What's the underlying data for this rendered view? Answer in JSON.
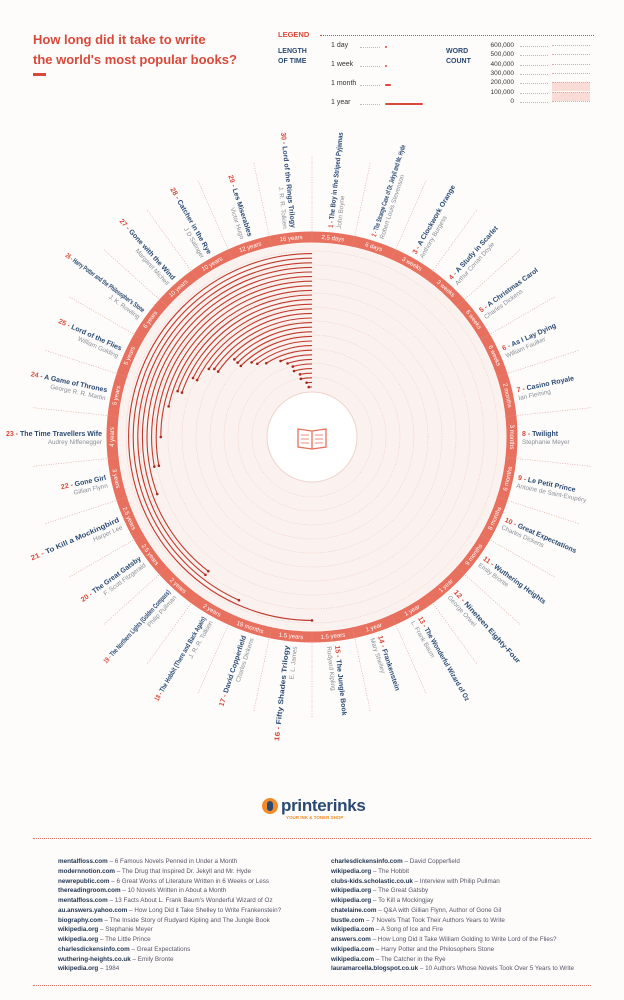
{
  "header": {
    "title_line1": "How long did it take to write",
    "title_line2": "the world's most popular books?"
  },
  "legend": {
    "heading": "LEGEND",
    "length_label_1": "LENGTH",
    "length_label_2": "OF TIME",
    "length_items": [
      "1 day",
      "1 week",
      "1 month",
      "1 year"
    ],
    "word_label_1": "WORD",
    "word_label_2": "COUNT",
    "word_items": [
      "600,000",
      "500,000",
      "400,000",
      "300,000",
      "200,000",
      "100,000",
      "0"
    ]
  },
  "colors": {
    "accent": "#e8705e",
    "title_red": "#d9493a",
    "book_blue": "#2a4a73",
    "author_gray": "#8a8f96"
  },
  "center_icon": "open-book-icon",
  "chart_data": {
    "type": "radial-bar",
    "title": "How long did it take to write the world's most popular books?",
    "books": [
      {
        "n": "1",
        "title": "The Boy in the Striped Pyjamas",
        "author": "John Boyne",
        "duration": "2,5 days",
        "years": 0.0068
      },
      {
        "n": "2",
        "title": "The Strange Case of Dr. Jekyll and Mr. Hyde",
        "author": "Robert Louis Stevenson",
        "duration": "6 days",
        "years": 0.016
      },
      {
        "n": "3",
        "title": "A Clockwork Orange",
        "author": "Anthony Burgess",
        "duration": "3 weeks",
        "years": 0.058
      },
      {
        "n": "4",
        "title": "A Study in Scarlet",
        "author": "Arthur Conan Doyle",
        "duration": "3 weeks",
        "years": 0.058
      },
      {
        "n": "5",
        "title": "A Christmas Carol",
        "author": "Charles Dickens",
        "duration": "6 weeks",
        "years": 0.115
      },
      {
        "n": "6",
        "title": "As I Lay Dying",
        "author": "William Faulker",
        "duration": "6 weeks",
        "years": 0.115
      },
      {
        "n": "7",
        "title": "Casino Royale",
        "author": "Ian Fleming",
        "duration": "2 months",
        "years": 0.167
      },
      {
        "n": "8",
        "title": "Twilight",
        "author": "Stephanie Meyer",
        "duration": "3 months",
        "years": 0.25
      },
      {
        "n": "9",
        "title": "Le Petit Prince",
        "author": "Antoine de Saint-Exupéry",
        "duration": "6 months",
        "years": 0.5
      },
      {
        "n": "10",
        "title": "Great Expectations",
        "author": "Charles Dickens",
        "duration": "8 months",
        "years": 0.667
      },
      {
        "n": "11",
        "title": "Wuthering Heights",
        "author": "Emily Bronte",
        "duration": "9 months",
        "years": 0.75
      },
      {
        "n": "12",
        "title": "Nineteen Eighty-Four",
        "author": "George Orwel",
        "duration": "1 year",
        "years": 1
      },
      {
        "n": "13",
        "title": "The Wonderful Wizard of Oz",
        "author": "L. Frank Baum",
        "duration": "1 year",
        "years": 1
      },
      {
        "n": "14",
        "title": "Frankenstein",
        "author": "Mary Shelley",
        "duration": "1 year",
        "years": 1
      },
      {
        "n": "15",
        "title": "The Jungle Book",
        "author": "Rudyard Kipling",
        "duration": "1.5 years",
        "years": 1.5
      },
      {
        "n": "16",
        "title": "Fifty Shades Trilogy",
        "author": "E. L. James",
        "duration": "1.5 years",
        "years": 1.5
      },
      {
        "n": "17",
        "title": "David Copperfield",
        "author": "Charles Dickens",
        "duration": "19 months",
        "years": 1.58
      },
      {
        "n": "18",
        "title": "The Hobbit (There and Back Again)",
        "author": "J. R. R. Tolkien",
        "duration": "2 years",
        "years": 2
      },
      {
        "n": "19",
        "title": "The Northern Lights (Golden Compass)",
        "author": "Philip Pullman",
        "duration": "2 years",
        "years": 2
      },
      {
        "n": "20",
        "title": "The Great Gatsby",
        "author": "F. Scott Fitzgerald",
        "duration": "2.5 years",
        "years": 2.5
      },
      {
        "n": "21",
        "title": "To Kill a Mockingbird",
        "author": "Harper Lee",
        "duration": "2.5 years",
        "years": 2.5
      },
      {
        "n": "22",
        "title": "Gone Girl",
        "author": "Gillian Flynn",
        "duration": "3 years",
        "years": 3
      },
      {
        "n": "23",
        "title": "The Time Travellers Wife",
        "author": "Audrey Niffenegger",
        "duration": "4 years",
        "years": 4
      },
      {
        "n": "24",
        "title": "A Game of Thrones",
        "author": "George R. R. Martin",
        "duration": "5 years",
        "years": 5
      },
      {
        "n": "25",
        "title": "Lord of the Flies",
        "author": "William Golding",
        "duration": "5 years",
        "years": 5
      },
      {
        "n": "26",
        "title": "Harry Potter and the Philosopher's Stone",
        "author": "J. K. Rowling",
        "duration": "6 years",
        "years": 6
      },
      {
        "n": "27",
        "title": "Gone with the Wind",
        "author": "Margaret Michell",
        "duration": "10 years",
        "years": 10
      },
      {
        "n": "28",
        "title": "Catcher in the Rye",
        "author": "J D Salinger",
        "duration": "10 years",
        "years": 10
      },
      {
        "n": "29",
        "title": "Les Miserables",
        "author": "Victor Hugo",
        "duration": "12 years",
        "years": 12
      },
      {
        "n": "30",
        "title": "Lord of the Rings Trilogy",
        "author": "J. R. R. Tolkien",
        "duration": "16 years",
        "years": 16
      }
    ]
  },
  "footer": {
    "logo_text": "printerinks",
    "logo_tagline": "YOUR INK & TONER SHOP",
    "sources_left": [
      {
        "site": "mentalfloss.com",
        "title": "6 Famous Novels Penned in Under a Month"
      },
      {
        "site": "modernnotion.com",
        "title": "The Drug that Inspired Dr. Jekyll and Mr. Hyde"
      },
      {
        "site": "newrepublic.com",
        "title": "6  Great Works of Literature Written in 6 Weeks or Less"
      },
      {
        "site": "thereadingroom.com",
        "title": "10 Novels Written in About a Month"
      },
      {
        "site": "mentalfloss.com",
        "title": "13 Facts About L. Frank Baum's Wonderful Wizard of Oz"
      },
      {
        "site": "au.answers.yahoo.com",
        "title": "How Long Did it Take Shelley to Write Frankenstein?"
      },
      {
        "site": "biography.com",
        "title": "The Inside Story of Rudyard Kipling and The Jungle Book"
      },
      {
        "site": "wikipedia.org",
        "title": "Stephanie Meyer"
      },
      {
        "site": "wikipedia.org",
        "title": "The Little Prince"
      },
      {
        "site": "charlesdickensinfo.com",
        "title": "Great Expectations"
      },
      {
        "site": "wuthering-heights.co.uk",
        "title": "Emily Bronte"
      },
      {
        "site": "wikipedia.org",
        "title": "1984"
      }
    ],
    "sources_right": [
      {
        "site": "charlesdickensinfo.com",
        "title": "David Copperfield"
      },
      {
        "site": "wikipedia.org",
        "title": "The Hobbit"
      },
      {
        "site": "clubs-kids.scholastic.co.uk",
        "title": "Interview with Philip Pullman"
      },
      {
        "site": "wikipedia.org",
        "title": "The Great Gatsby"
      },
      {
        "site": "wikipedia.org",
        "title": "To Kill a Mockingjay"
      },
      {
        "site": "chatelaine.com",
        "title": "Q&A with Gillian Flynn, Author of Gone Gil"
      },
      {
        "site": "bustle.com",
        "title": "7 Novels That Took Their Authors Years to Write"
      },
      {
        "site": "wikipedia.com",
        "title": "A Song of Ice and Fire"
      },
      {
        "site": "answers.com",
        "title": "How Long Did it Take William Golding to Write Lord of the Flies?"
      },
      {
        "site": "wikipedia.com",
        "title": "Harry Potter and the Philosophers Stone"
      },
      {
        "site": "wikipedia.com",
        "title": "The Catcher in the Rye"
      },
      {
        "site": "lauramarcella.blogspot.co.uk",
        "title": "10 Authors Whose Novels Took Over 5 Years to Write"
      }
    ]
  }
}
